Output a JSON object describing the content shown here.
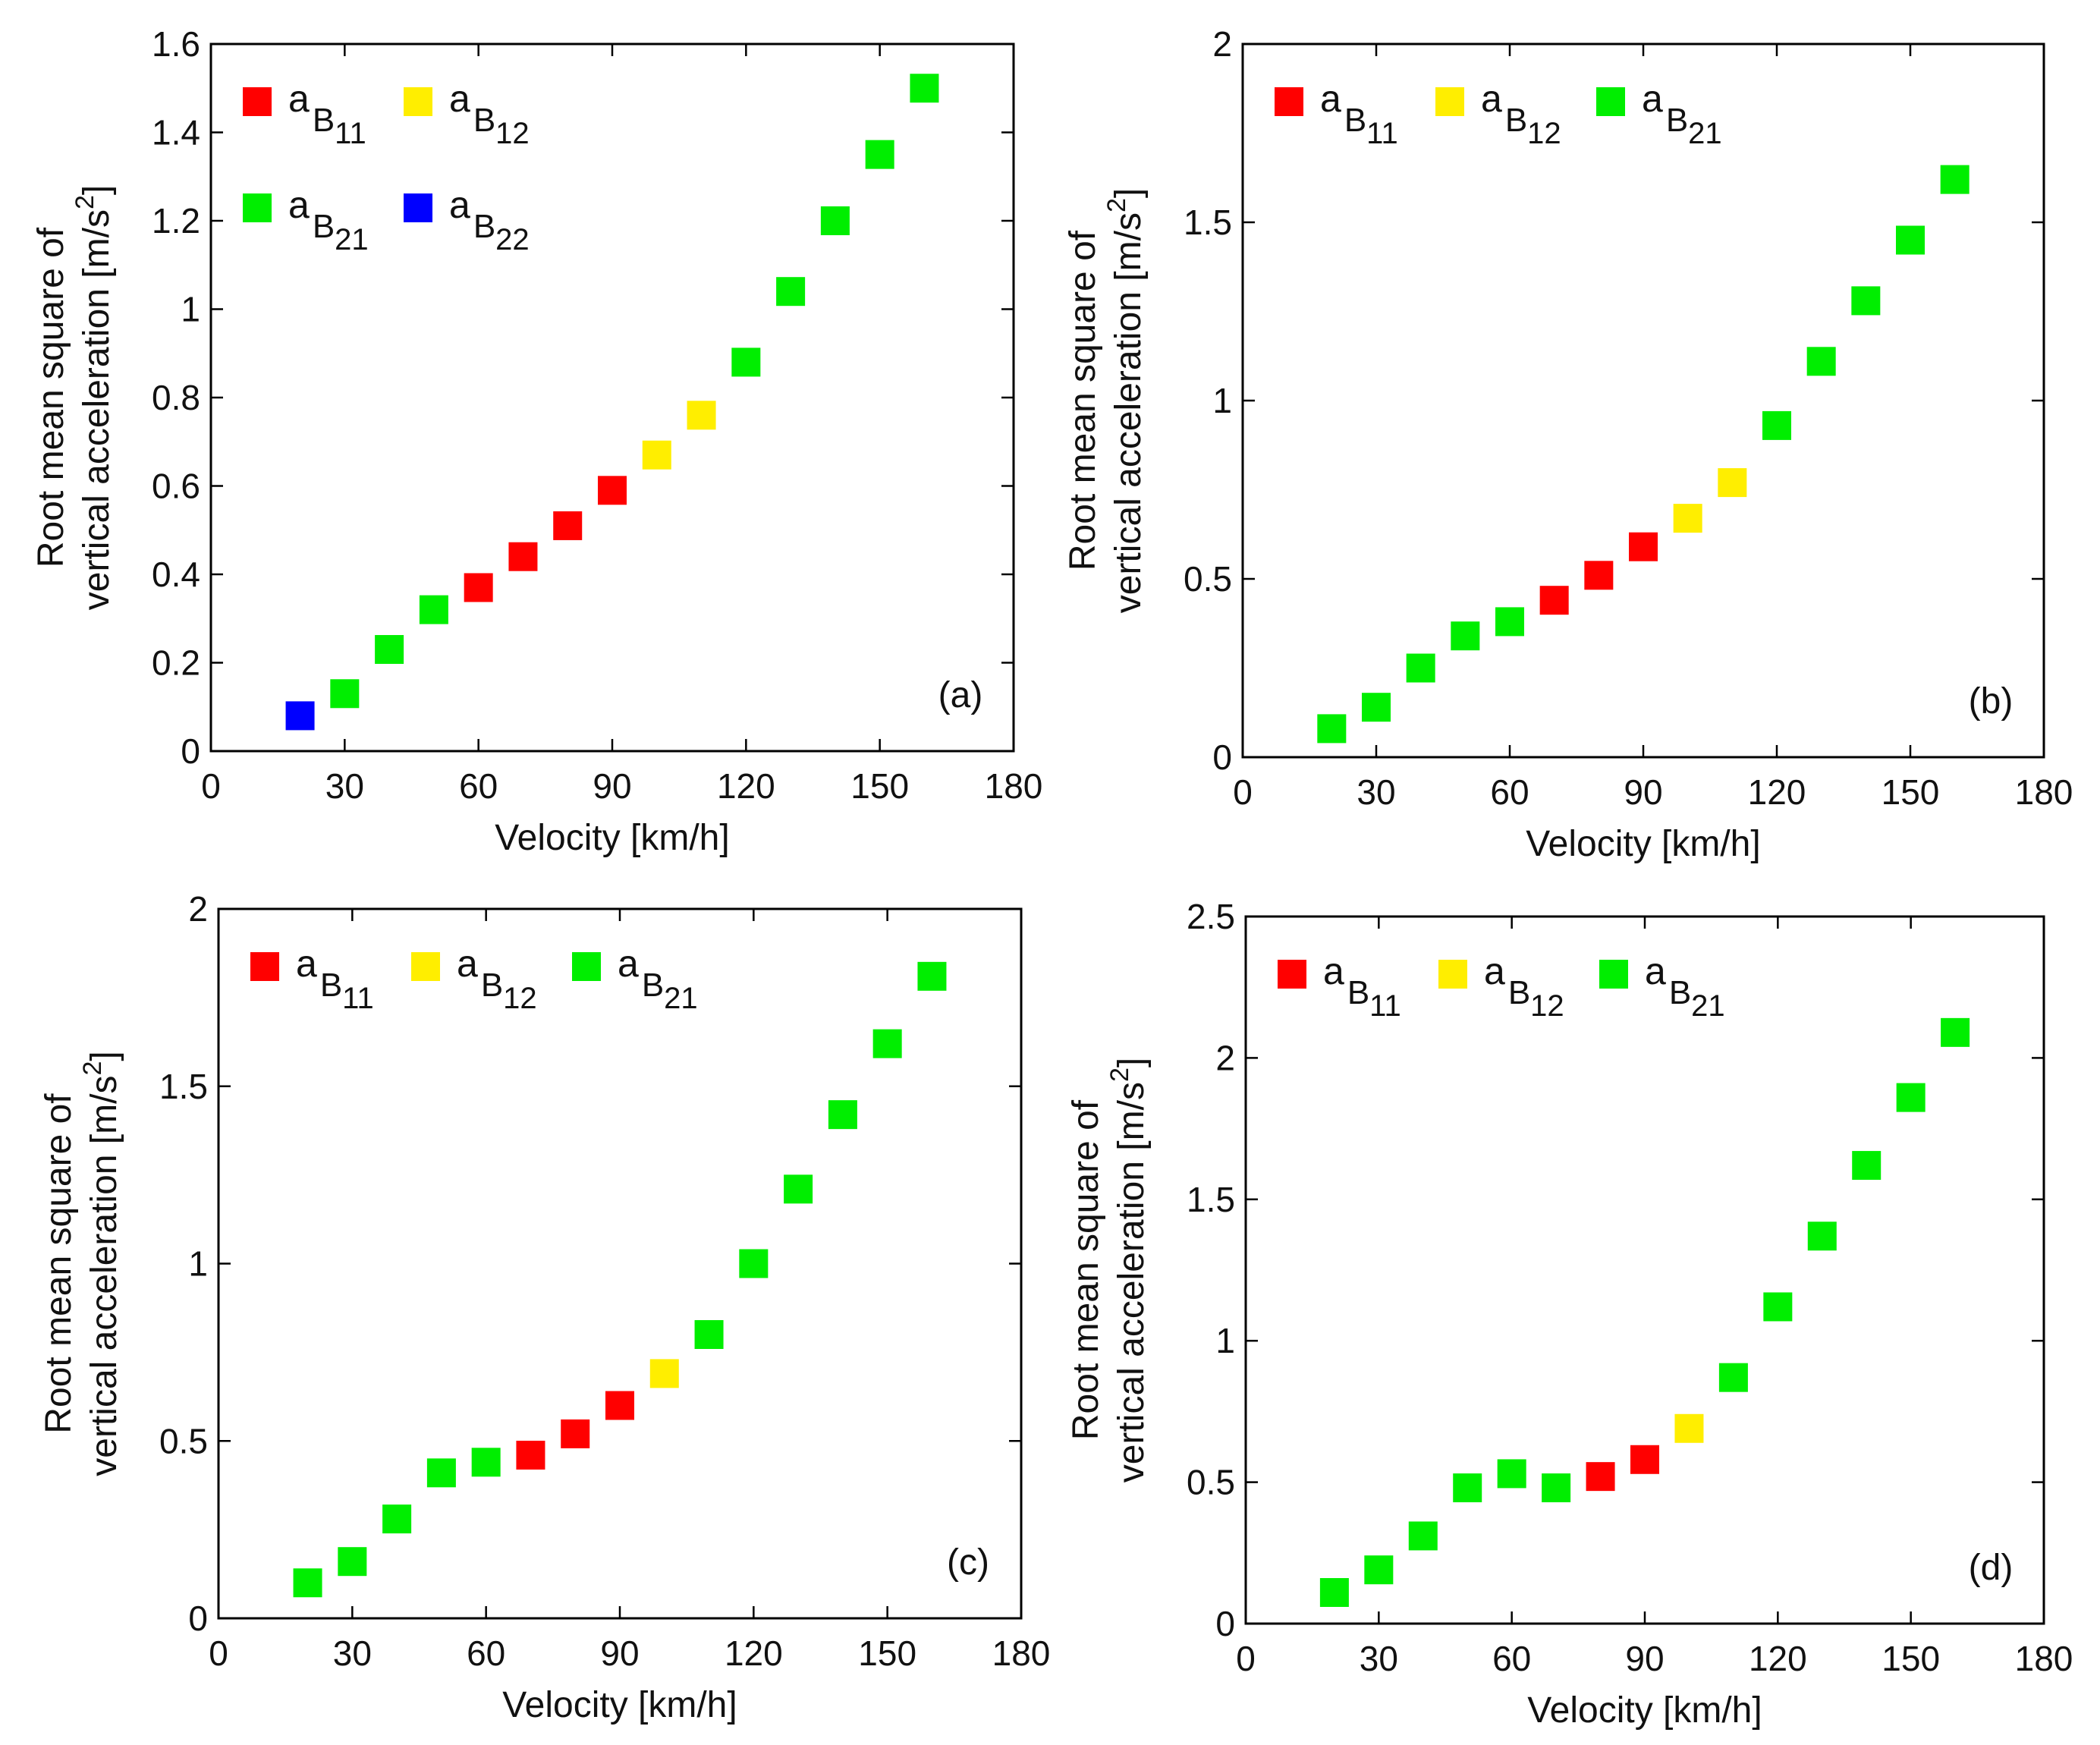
{
  "figure": {
    "x_axis_label": "Velocity [km/h]"
  },
  "legend_labels": {
    "b11": "a",
    "b12": "a",
    "b21": "a",
    "b22": "a"
  },
  "chart_data": [
    {
      "type": "scatter",
      "panel_label": "(a)",
      "xlabel": "Velocity [km/h]",
      "ylabel_line1": "Root mean square of",
      "ylabel_line2": "vertical acceleration [m/s",
      "ylabel_sup": "2",
      "ylabel_end": "]",
      "xlim": [
        0,
        180
      ],
      "ylim": [
        0,
        1.6
      ],
      "xticks": [
        0,
        30,
        60,
        90,
        120,
        150,
        180
      ],
      "yticks": [
        0,
        0.2,
        0.4,
        0.6,
        0.8,
        1,
        1.2,
        1.4,
        1.6
      ],
      "ytick_labels": [
        "0",
        "0.2",
        "0.4",
        "0.6",
        "0.8",
        "1",
        "1.2",
        "1.4",
        "1.6"
      ],
      "legend": [
        {
          "symbol": "a",
          "sub_letter": "B",
          "sub_index": "11",
          "color": "#ff0000"
        },
        {
          "symbol": "a",
          "sub_letter": "B",
          "sub_index": "12",
          "color": "#ffee00"
        },
        {
          "symbol": "a",
          "sub_letter": "B",
          "sub_index": "21",
          "color": "#00ee00"
        },
        {
          "symbol": "a",
          "sub_letter": "B",
          "sub_index": "22",
          "color": "#0000ff"
        }
      ],
      "points": [
        {
          "x": 20,
          "y": 0.08,
          "group": "B22"
        },
        {
          "x": 30,
          "y": 0.13,
          "group": "B21"
        },
        {
          "x": 40,
          "y": 0.23,
          "group": "B21"
        },
        {
          "x": 50,
          "y": 0.32,
          "group": "B21"
        },
        {
          "x": 60,
          "y": 0.37,
          "group": "B11"
        },
        {
          "x": 70,
          "y": 0.44,
          "group": "B11"
        },
        {
          "x": 80,
          "y": 0.51,
          "group": "B11"
        },
        {
          "x": 90,
          "y": 0.59,
          "group": "B11"
        },
        {
          "x": 100,
          "y": 0.67,
          "group": "B12"
        },
        {
          "x": 110,
          "y": 0.76,
          "group": "B12"
        },
        {
          "x": 120,
          "y": 0.88,
          "group": "B21"
        },
        {
          "x": 130,
          "y": 1.04,
          "group": "B21"
        },
        {
          "x": 140,
          "y": 1.2,
          "group": "B21"
        },
        {
          "x": 150,
          "y": 1.35,
          "group": "B21"
        },
        {
          "x": 160,
          "y": 1.5,
          "group": "B21"
        }
      ]
    },
    {
      "type": "scatter",
      "panel_label": "(b)",
      "xlabel": "Velocity [km/h]",
      "ylabel_line1": "Root mean square of",
      "ylabel_line2": "vertical acceleration [m/s",
      "ylabel_sup": "2",
      "ylabel_end": "]",
      "xlim": [
        0,
        180
      ],
      "ylim": [
        0,
        2
      ],
      "xticks": [
        0,
        30,
        60,
        90,
        120,
        150,
        180
      ],
      "yticks": [
        0,
        0.5,
        1,
        1.5,
        2
      ],
      "ytick_labels": [
        "0",
        "0.5",
        "1",
        "1.5",
        "2"
      ],
      "legend": [
        {
          "symbol": "a",
          "sub_letter": "B",
          "sub_index": "11",
          "color": "#ff0000"
        },
        {
          "symbol": "a",
          "sub_letter": "B",
          "sub_index": "12",
          "color": "#ffee00"
        },
        {
          "symbol": "a",
          "sub_letter": "B",
          "sub_index": "21",
          "color": "#00ee00"
        }
      ],
      "points": [
        {
          "x": 20,
          "y": 0.08,
          "group": "B21"
        },
        {
          "x": 30,
          "y": 0.14,
          "group": "B21"
        },
        {
          "x": 40,
          "y": 0.25,
          "group": "B21"
        },
        {
          "x": 50,
          "y": 0.34,
          "group": "B21"
        },
        {
          "x": 60,
          "y": 0.38,
          "group": "B21"
        },
        {
          "x": 70,
          "y": 0.44,
          "group": "B11"
        },
        {
          "x": 80,
          "y": 0.51,
          "group": "B11"
        },
        {
          "x": 90,
          "y": 0.59,
          "group": "B11"
        },
        {
          "x": 100,
          "y": 0.67,
          "group": "B12"
        },
        {
          "x": 110,
          "y": 0.77,
          "group": "B12"
        },
        {
          "x": 120,
          "y": 0.93,
          "group": "B21"
        },
        {
          "x": 130,
          "y": 1.11,
          "group": "B21"
        },
        {
          "x": 140,
          "y": 1.28,
          "group": "B21"
        },
        {
          "x": 150,
          "y": 1.45,
          "group": "B21"
        },
        {
          "x": 160,
          "y": 1.62,
          "group": "B21"
        }
      ]
    },
    {
      "type": "scatter",
      "panel_label": "(c)",
      "xlabel": "Velocity [km/h]",
      "ylabel_line1": "Root mean square of",
      "ylabel_line2": "vertical acceleration [m/s",
      "ylabel_sup": "2",
      "ylabel_end": "]",
      "xlim": [
        0,
        180
      ],
      "ylim": [
        0,
        2
      ],
      "xticks": [
        0,
        30,
        60,
        90,
        120,
        150,
        180
      ],
      "yticks": [
        0,
        0.5,
        1,
        1.5,
        2
      ],
      "ytick_labels": [
        "0",
        "0.5",
        "1",
        "1.5",
        "2"
      ],
      "legend": [
        {
          "symbol": "a",
          "sub_letter": "B",
          "sub_index": "11",
          "color": "#ff0000"
        },
        {
          "symbol": "a",
          "sub_letter": "B",
          "sub_index": "12",
          "color": "#ffee00"
        },
        {
          "symbol": "a",
          "sub_letter": "B",
          "sub_index": "21",
          "color": "#00ee00"
        }
      ],
      "points": [
        {
          "x": 20,
          "y": 0.1,
          "group": "B21"
        },
        {
          "x": 30,
          "y": 0.16,
          "group": "B21"
        },
        {
          "x": 40,
          "y": 0.28,
          "group": "B21"
        },
        {
          "x": 50,
          "y": 0.41,
          "group": "B21"
        },
        {
          "x": 60,
          "y": 0.44,
          "group": "B21"
        },
        {
          "x": 70,
          "y": 0.46,
          "group": "B11"
        },
        {
          "x": 80,
          "y": 0.52,
          "group": "B11"
        },
        {
          "x": 90,
          "y": 0.6,
          "group": "B11"
        },
        {
          "x": 100,
          "y": 0.69,
          "group": "B12"
        },
        {
          "x": 110,
          "y": 0.8,
          "group": "B21"
        },
        {
          "x": 120,
          "y": 1.0,
          "group": "B21"
        },
        {
          "x": 130,
          "y": 1.21,
          "group": "B21"
        },
        {
          "x": 140,
          "y": 1.42,
          "group": "B21"
        },
        {
          "x": 150,
          "y": 1.62,
          "group": "B21"
        },
        {
          "x": 160,
          "y": 1.81,
          "group": "B21"
        }
      ]
    },
    {
      "type": "scatter",
      "panel_label": "(d)",
      "xlabel": "Velocity [km/h]",
      "ylabel_line1": "Root mean square of",
      "ylabel_line2": "vertical acceleration [m/s",
      "ylabel_sup": "2",
      "ylabel_end": "]",
      "xlim": [
        0,
        180
      ],
      "ylim": [
        0,
        2.5
      ],
      "xticks": [
        0,
        30,
        60,
        90,
        120,
        150,
        180
      ],
      "yticks": [
        0,
        0.5,
        1,
        1.5,
        2,
        2.5
      ],
      "ytick_labels": [
        "0",
        "0.5",
        "1",
        "1.5",
        "2",
        "2.5"
      ],
      "legend": [
        {
          "symbol": "a",
          "sub_letter": "B",
          "sub_index": "11",
          "color": "#ff0000"
        },
        {
          "symbol": "a",
          "sub_letter": "B",
          "sub_index": "12",
          "color": "#ffee00"
        },
        {
          "symbol": "a",
          "sub_letter": "B",
          "sub_index": "21",
          "color": "#00ee00"
        }
      ],
      "points": [
        {
          "x": 20,
          "y": 0.11,
          "group": "B21"
        },
        {
          "x": 30,
          "y": 0.19,
          "group": "B21"
        },
        {
          "x": 40,
          "y": 0.31,
          "group": "B21"
        },
        {
          "x": 50,
          "y": 0.48,
          "group": "B21"
        },
        {
          "x": 60,
          "y": 0.53,
          "group": "B21"
        },
        {
          "x": 70,
          "y": 0.48,
          "group": "B21"
        },
        {
          "x": 80,
          "y": 0.52,
          "group": "B11"
        },
        {
          "x": 90,
          "y": 0.58,
          "group": "B11"
        },
        {
          "x": 100,
          "y": 0.69,
          "group": "B12"
        },
        {
          "x": 110,
          "y": 0.87,
          "group": "B21"
        },
        {
          "x": 120,
          "y": 1.12,
          "group": "B21"
        },
        {
          "x": 130,
          "y": 1.37,
          "group": "B21"
        },
        {
          "x": 140,
          "y": 1.62,
          "group": "B21"
        },
        {
          "x": 150,
          "y": 1.86,
          "group": "B21"
        },
        {
          "x": 160,
          "y": 2.09,
          "group": "B21"
        }
      ]
    }
  ],
  "colors": {
    "B11": "#ff0000",
    "B12": "#ffee00",
    "B21": "#00ee00",
    "B22": "#0000ff",
    "axis": "#000000"
  }
}
